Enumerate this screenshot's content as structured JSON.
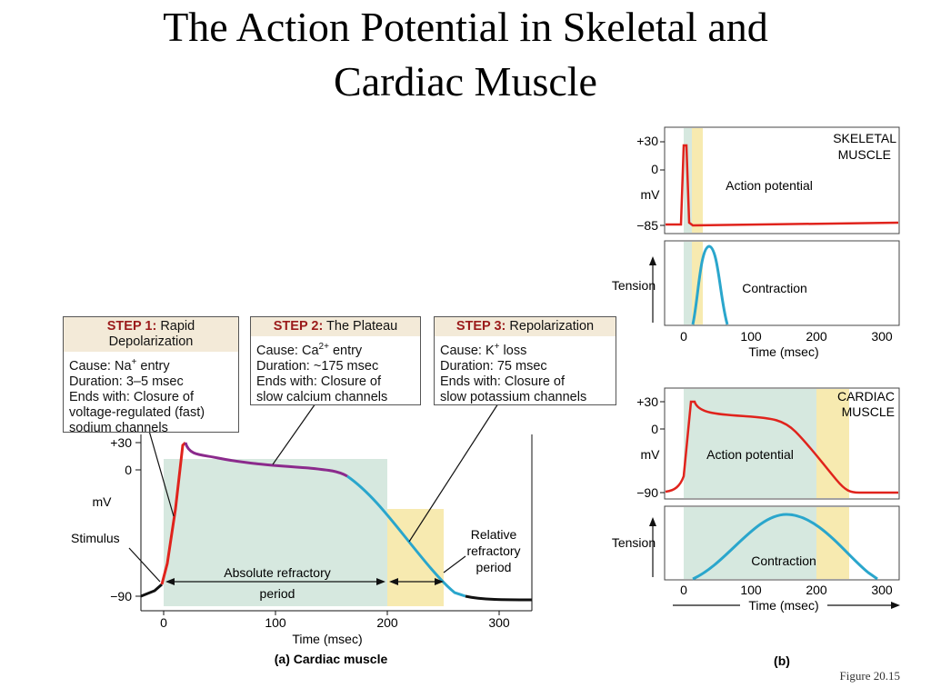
{
  "slide": {
    "title_line1": "The Action Potential in Skeletal and",
    "title_line2": "Cardiac Muscle",
    "footer": "Figure 20.15"
  },
  "panel_a": {
    "caption": "(a) Cardiac muscle",
    "xlabel": "Time (msec)",
    "ylabel": "mV",
    "y_ticks": [
      "+30",
      "0",
      "−90"
    ],
    "x_ticks": [
      "0",
      "100",
      "200",
      "300"
    ],
    "stimulus_label": "Stimulus",
    "absolute_refractory_line1": "Absolute refractory",
    "absolute_refractory_line2": "period",
    "relative_refractory_line1": "Relative",
    "relative_refractory_line2": "refractory",
    "relative_refractory_line3": "period"
  },
  "steps": [
    {
      "head_bold": "STEP 1:",
      "head_line1": " Rapid",
      "head_line2": "Depolarization",
      "cause_prefix": "Cause: Na",
      "cause_sup": "+",
      "cause_suffix": " entry",
      "duration": "Duration: 3–5 msec",
      "ends_1": "Ends with: Closure of",
      "ends_2": "voltage-regulated (fast)",
      "ends_3": "sodium channels"
    },
    {
      "head_bold": "STEP 2:",
      "head_line1": " The Plateau",
      "cause_prefix": "Cause: Ca",
      "cause_sup": "2+",
      "cause_suffix": " entry",
      "duration": "Duration: ~175 msec",
      "ends_1": "Ends with: Closure of",
      "ends_2": "slow calcium channels"
    },
    {
      "head_bold": "STEP 3:",
      "head_line1": " Repolarization",
      "cause_prefix": "Cause: K",
      "cause_sup": "+",
      "cause_suffix": " loss",
      "duration": "Duration: 75 msec",
      "ends_1": "Ends with: Closure of",
      "ends_2": "slow potassium channels"
    }
  ],
  "panel_b": {
    "caption": "(b)",
    "skeletal": {
      "label_line1": "SKELETAL",
      "label_line2": "MUSCLE",
      "ap_label": "Action potential",
      "contraction_label": "Contraction",
      "ylabel": "mV",
      "tension_label": "Tension",
      "y_ticks": [
        "+30",
        "0",
        "−85"
      ],
      "x_ticks": [
        "0",
        "100",
        "200",
        "300"
      ],
      "xlabel": "Time (msec)"
    },
    "cardiac": {
      "label_line1": "CARDIAC",
      "label_line2": "MUSCLE",
      "ap_label": "Action potential",
      "contraction_label": "Contraction",
      "ylabel": "mV",
      "tension_label": "Tension",
      "y_ticks": [
        "+30",
        "0",
        "−90"
      ],
      "x_ticks": [
        "0",
        "100",
        "200",
        "300"
      ],
      "xlabel": "Time (msec)"
    }
  },
  "colors": {
    "absolute_refractory": "#d6e8df",
    "relative_refractory": "#f7eab0",
    "depolarization": "#e0231c",
    "plateau": "#8b2a8c",
    "repolarization": "#2aa6cc",
    "resting": "#111111",
    "step_header_bg": "#f3ead8",
    "step_header_text": "#9b1b1b"
  }
}
